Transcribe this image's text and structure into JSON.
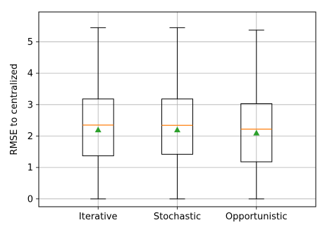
{
  "chart_data": {
    "type": "box",
    "title": "",
    "xlabel": "",
    "ylabel": "RMSE to centralized",
    "ylim": [
      -0.25,
      5.95
    ],
    "yticks": [
      0,
      1,
      2,
      3,
      4,
      5
    ],
    "grid": true,
    "categories": [
      "Iterative",
      "Stochastic",
      "Opportunistic"
    ],
    "boxes": [
      {
        "name": "Iterative",
        "whislo": 0.0,
        "q1": 1.37,
        "med": 2.35,
        "q3": 3.18,
        "whishi": 5.45,
        "mean": 2.2
      },
      {
        "name": "Stochastic",
        "whislo": 0.0,
        "q1": 1.42,
        "med": 2.34,
        "q3": 3.18,
        "whishi": 5.45,
        "mean": 2.2
      },
      {
        "name": "Opportunistic",
        "whislo": 0.0,
        "q1": 1.18,
        "med": 2.22,
        "q3": 3.03,
        "whishi": 5.37,
        "mean": 2.1
      }
    ],
    "colors": {
      "box": "#000000",
      "median": "#ff7f0e",
      "mean": "#2ca02c",
      "grid": "#b0b0b0"
    }
  }
}
